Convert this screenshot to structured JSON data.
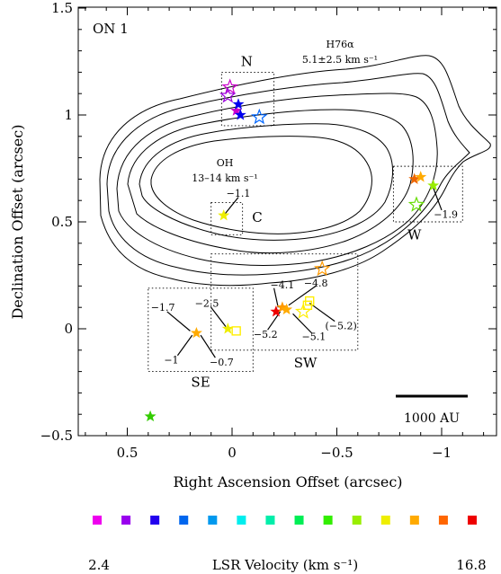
{
  "chart_data": {
    "type": "scatter",
    "title": "ON 1",
    "xlabel": "Right Ascension Offset (arcsec)",
    "ylabel": "Declination Offset (arcsec)",
    "xlim": [
      0.75,
      -1.25
    ],
    "ylim": [
      -0.5,
      1.5
    ],
    "x_ticks": [
      0.5,
      0,
      -0.5,
      -1
    ],
    "x_tick_labels": [
      "0.5",
      "0",
      "−0.5",
      "−1"
    ],
    "y_ticks": [
      -0.5,
      0,
      0.5,
      1,
      1.5
    ],
    "y_tick_labels": [
      "−0.5",
      "0",
      "0.5",
      "1",
      "1.5"
    ],
    "grid": false,
    "h76a_label": "H76α",
    "h76a_velocity": "5.1±2.5 km s⁻¹",
    "h76a_color": "#0000ee",
    "oh_label": "OH",
    "oh_velocity": "13–14 km s⁻¹",
    "oh_color": "#ee0000",
    "scale_bar_label": "1000 AU",
    "regions": [
      {
        "name": "N",
        "x": [
          0.05,
          -0.2
        ],
        "y": [
          0.95,
          1.2
        ],
        "label_at": [
          -0.07,
          1.25
        ]
      },
      {
        "name": "C",
        "x": [
          0.1,
          -0.05
        ],
        "y": [
          0.44,
          0.59
        ],
        "label_at": [
          -0.12,
          0.52
        ]
      },
      {
        "name": "W",
        "x": [
          -0.77,
          -1.1
        ],
        "y": [
          0.5,
          0.76
        ],
        "label_at": [
          -0.87,
          0.44
        ]
      },
      {
        "name": "SW",
        "x": [
          0.1,
          -0.6
        ],
        "y": [
          -0.1,
          0.35
        ],
        "label_at": [
          -0.35,
          -0.16
        ]
      },
      {
        "name": "SE",
        "x": [
          0.4,
          -0.1
        ],
        "y": [
          -0.2,
          0.19
        ],
        "label_at": [
          0.15,
          -0.25
        ]
      }
    ],
    "maser_labels": [
      {
        "text": "−1.1",
        "x": -0.03,
        "y": 0.635
      },
      {
        "text": "−1.9",
        "x": -1.02,
        "y": 0.535
      },
      {
        "text": "−4.1",
        "x": -0.24,
        "y": 0.205
      },
      {
        "text": "−4.8",
        "x": -0.4,
        "y": 0.215
      },
      {
        "text": "−5.2",
        "x": -0.16,
        "y": -0.025
      },
      {
        "text": "−5.1",
        "x": -0.39,
        "y": -0.035
      },
      {
        "text": "(−5.2)",
        "x": -0.52,
        "y": 0.015
      },
      {
        "text": "−1.7",
        "x": 0.33,
        "y": 0.1
      },
      {
        "text": "−2.5",
        "x": 0.12,
        "y": 0.12
      },
      {
        "text": "−1",
        "x": 0.29,
        "y": -0.145
      },
      {
        "text": "−0.7",
        "x": 0.05,
        "y": -0.155
      }
    ],
    "series": [
      {
        "values": [
          {
            "x": 0.01,
            "y": 1.13,
            "color": "#cc00cc",
            "marker": "star-open"
          },
          {
            "x": -0.02,
            "y": 1.02,
            "color": "#cc00cc",
            "marker": "star"
          },
          {
            "x": 0.02,
            "y": 1.09,
            "color": "#9900dd",
            "marker": "star-open"
          },
          {
            "x": -0.04,
            "y": 1.0,
            "color": "#0000ee",
            "marker": "star"
          },
          {
            "x": -0.03,
            "y": 1.05,
            "color": "#0000ee",
            "marker": "star"
          },
          {
            "x": -0.13,
            "y": 0.99,
            "color": "#0066ff",
            "marker": "star-open"
          },
          {
            "x": 0.04,
            "y": 0.53,
            "color": "#eeee00",
            "marker": "star"
          },
          {
            "x": -0.87,
            "y": 0.7,
            "color": "#ee6600",
            "marker": "star"
          },
          {
            "x": -0.9,
            "y": 0.71,
            "color": "#ffaa00",
            "marker": "star"
          },
          {
            "x": -0.88,
            "y": 0.58,
            "color": "#66dd00",
            "marker": "star-open"
          },
          {
            "x": -0.96,
            "y": 0.67,
            "color": "#99ee00",
            "marker": "star"
          },
          {
            "x": -0.21,
            "y": 0.08,
            "color": "#ee0000",
            "marker": "star"
          },
          {
            "x": -0.24,
            "y": 0.1,
            "color": "#ff9900",
            "marker": "star"
          },
          {
            "x": -0.26,
            "y": 0.09,
            "color": "#ffaa00",
            "marker": "star"
          },
          {
            "x": -0.36,
            "y": 0.11,
            "color": "#ffee00",
            "marker": "square-open"
          },
          {
            "x": -0.37,
            "y": 0.13,
            "color": "#ffee00",
            "marker": "square-open"
          },
          {
            "x": -0.34,
            "y": 0.08,
            "color": "#ffee00",
            "marker": "star-open"
          },
          {
            "x": -0.43,
            "y": 0.28,
            "color": "#ff9900",
            "marker": "star-open"
          },
          {
            "x": 0.17,
            "y": -0.02,
            "color": "#ffaa00",
            "marker": "star"
          },
          {
            "x": 0.02,
            "y": 0.0,
            "color": "#eeee00",
            "marker": "star"
          },
          {
            "x": -0.02,
            "y": -0.01,
            "color": "#ffee00",
            "marker": "square-open"
          },
          {
            "x": 0.39,
            "y": -0.41,
            "color": "#33cc00",
            "marker": "star"
          }
        ]
      }
    ],
    "colorbar": {
      "label": "LSR Velocity (km s⁻¹)",
      "min_label": "2.4",
      "max_label": "16.8",
      "colors": [
        "#ee00ee",
        "#9900ee",
        "#2200ee",
        "#0066ee",
        "#0099ee",
        "#00eeee",
        "#00eeaa",
        "#00ee55",
        "#33ee00",
        "#99ee00",
        "#eeee00",
        "#ffaa00",
        "#ff6600",
        "#ee0000"
      ]
    }
  }
}
